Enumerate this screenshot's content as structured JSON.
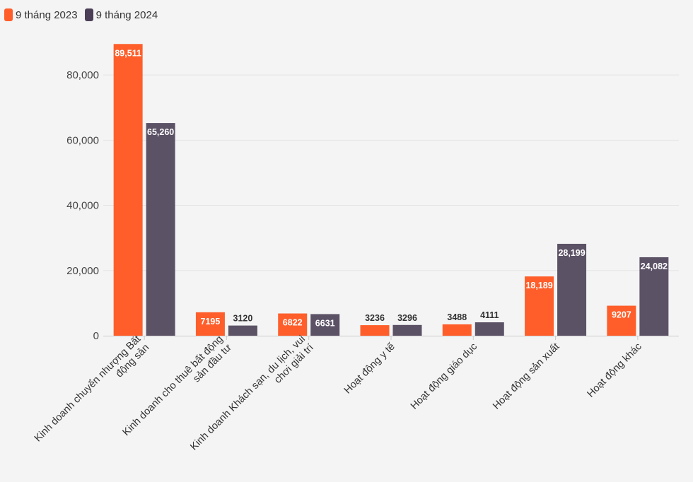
{
  "colors": {
    "series_2023": "#ff5e2a",
    "series_2024": "#5c5266",
    "grid": "#e4e4e4",
    "axis": "#cccccc",
    "label_dark": "#333333",
    "label_light": "#ffffff"
  },
  "legend": {
    "items": [
      {
        "label": "9 tháng 2023",
        "color": "#ff5e2a"
      },
      {
        "label": "9 tháng 2024",
        "color": "#4a3f56"
      }
    ]
  },
  "chart_data": {
    "type": "bar",
    "title": "",
    "xlabel": "",
    "ylabel": "",
    "ylim": [
      0,
      90000
    ],
    "yticks": [
      0,
      20000,
      40000,
      60000,
      80000
    ],
    "ytick_labels": [
      "0",
      "20,000",
      "40,000",
      "60,000",
      "80,000"
    ],
    "grid": true,
    "legend_position": "top-left",
    "categories": [
      [
        "Kinh doanh chuyển nhượng Bất",
        "động sản"
      ],
      [
        "Kinh doanh cho thuê bất động",
        "sản đầu tư"
      ],
      [
        "Kinh doanh Khách sạn, du lịch, vui",
        "chơi giải trí"
      ],
      [
        "Hoạt động y tế"
      ],
      [
        "Hoạt động giáo dục"
      ],
      [
        "Hoạt động sản xuất"
      ],
      [
        "Hoạt động khác"
      ]
    ],
    "series": [
      {
        "name": "9 tháng 2023",
        "values": [
          89511,
          7195,
          6822,
          3236,
          3488,
          18189,
          9207
        ],
        "labels": [
          "89,511",
          "7195",
          "6822",
          "3236",
          "3488",
          "18,189",
          "9207"
        ]
      },
      {
        "name": "9 tháng 2024",
        "values": [
          65260,
          3120,
          6631,
          3296,
          4111,
          28199,
          24082
        ],
        "labels": [
          "65,260",
          "3120",
          "6631",
          "3296",
          "4111",
          "28,199",
          "24,082"
        ]
      }
    ]
  }
}
